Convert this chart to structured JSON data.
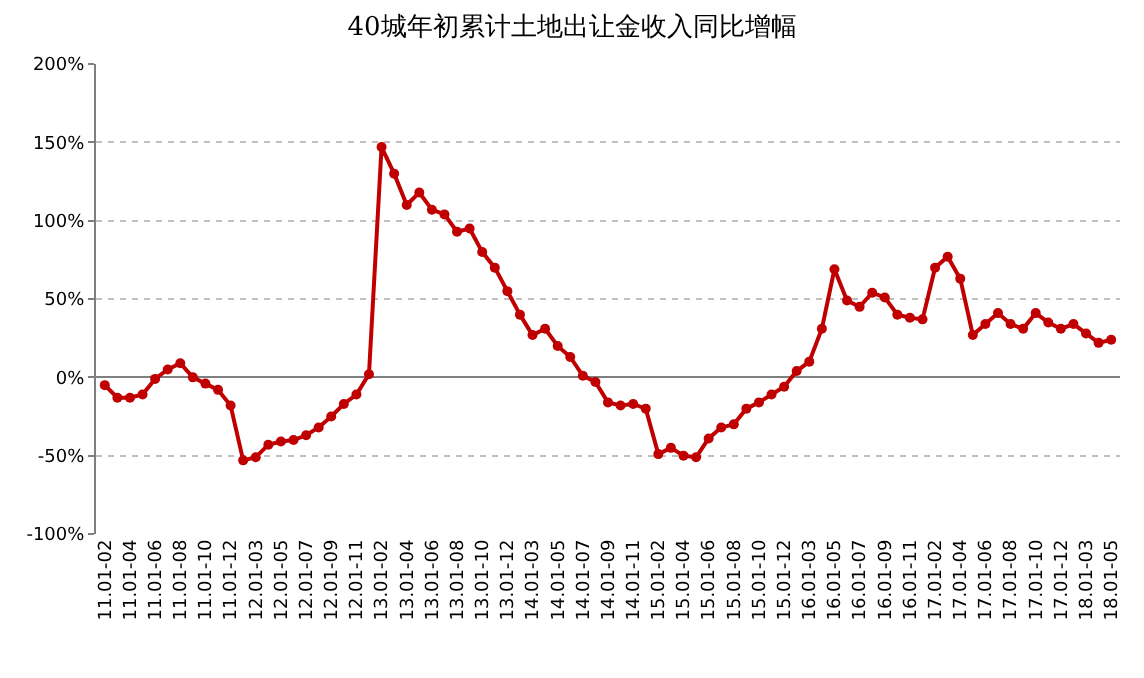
{
  "chart_data": {
    "type": "line",
    "title": "40城年初累计土地出让金收入同比增幅",
    "categories": [
      "11.01-02",
      null,
      "11.01-04",
      null,
      "11.01-06",
      null,
      "11.01-08",
      null,
      "11.01-10",
      null,
      "11.01-12",
      null,
      "12.01-03",
      null,
      "12.01-05",
      null,
      "12.01-07",
      null,
      "12.01-09",
      null,
      "12.01-11",
      null,
      "13.01-02",
      null,
      "13.01-04",
      null,
      "13.01-06",
      null,
      "13.01-08",
      null,
      "13.01-10",
      null,
      "13.01-12",
      null,
      "14.01-03",
      null,
      "14.01-05",
      null,
      "14.01-07",
      null,
      "14.01-09",
      null,
      "14.01-11",
      null,
      "15.01-02",
      null,
      "15.01-04",
      null,
      "15.01-06",
      null,
      "15.01-08",
      null,
      "15.01-10",
      null,
      "15.01-12",
      null,
      "16.01-03",
      null,
      "16.01-05",
      null,
      "16.01-07",
      null,
      "16.01-09",
      null,
      "16.01-11",
      null,
      "17.01-02",
      null,
      "17.01-04",
      null,
      "17.01-06",
      null,
      "17.01-08",
      null,
      "17.01-10",
      null,
      "17.01-12",
      null,
      "18.01-03",
      null,
      "18.01-05"
    ],
    "series": [
      {
        "color": "#c00000",
        "values": [
          -5,
          -13,
          -13,
          -11,
          -1,
          5,
          9,
          0,
          -4,
          -8,
          -18,
          -53,
          -51,
          -43,
          -41,
          -40,
          -37,
          -32,
          -25,
          -17,
          -11,
          2,
          147,
          130,
          110,
          118,
          107,
          104,
          93,
          95,
          80,
          70,
          55,
          40,
          27,
          31,
          20,
          13,
          1,
          -3,
          -16,
          -18,
          -17,
          -20,
          -49,
          -45,
          -50,
          -51,
          -39,
          -32,
          -30,
          -20,
          -16,
          -11,
          -6,
          4,
          10,
          31,
          69,
          49,
          45,
          54,
          51,
          40,
          38,
          37,
          70,
          77,
          63,
          27,
          34,
          41,
          34,
          31,
          41,
          35,
          31,
          34,
          28,
          22,
          24
        ]
      }
    ],
    "ylim": [
      -100,
      200
    ],
    "yticks": [
      {
        "value": -100,
        "label": "-100%"
      },
      {
        "value": -50,
        "label": "-50%"
      },
      {
        "value": 0,
        "label": "0%"
      },
      {
        "value": 50,
        "label": "50%"
      },
      {
        "value": 100,
        "label": "100%"
      },
      {
        "value": 150,
        "label": "150%"
      },
      {
        "value": 200,
        "label": "200%"
      }
    ],
    "grid": "y",
    "marker": "circle",
    "line_style": "solid"
  }
}
